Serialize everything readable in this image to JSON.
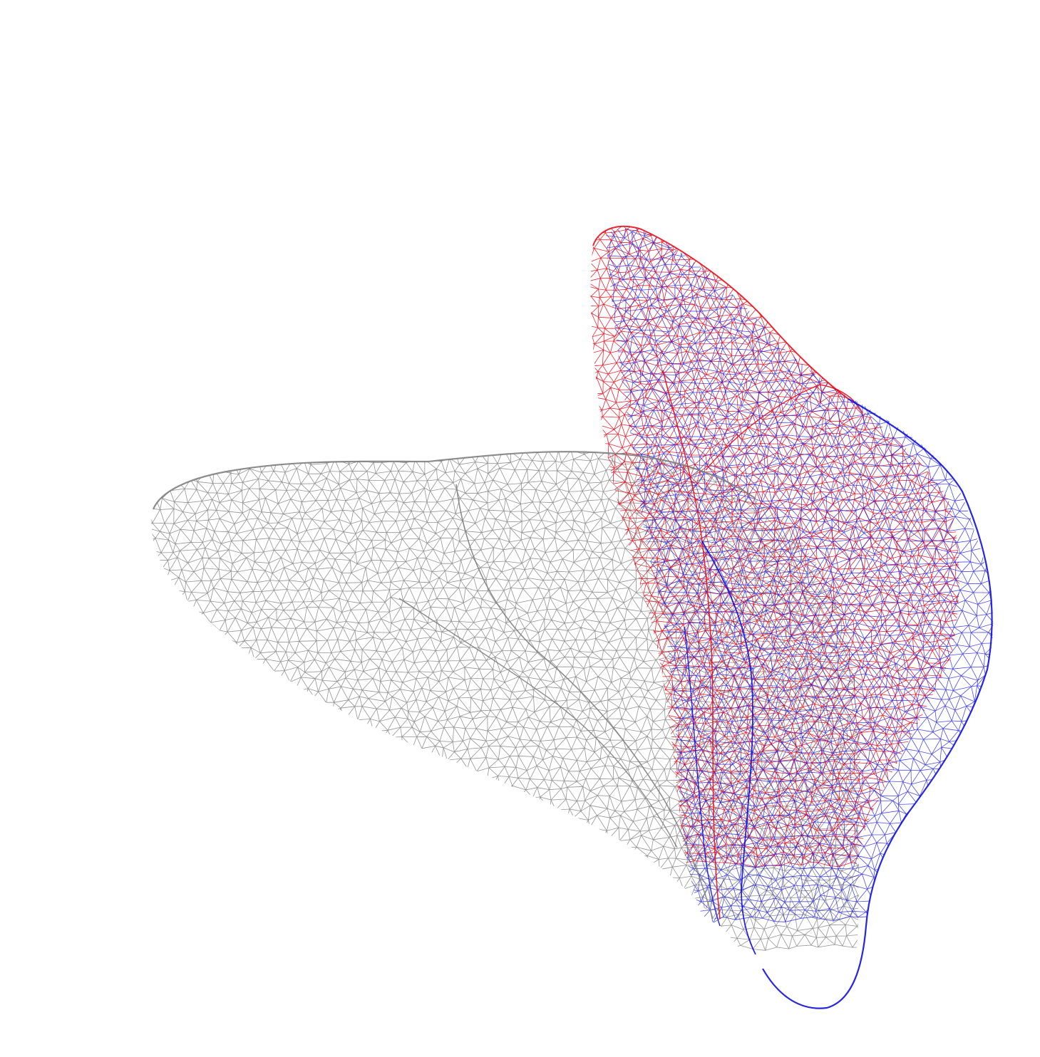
{
  "scene": {
    "background": "#ffffff",
    "meshes": [
      {
        "name": "gray-mesh",
        "color": "#808080"
      },
      {
        "name": "red-mesh",
        "color": "#e8101c"
      },
      {
        "name": "blue-mesh",
        "color": "#1010e0"
      }
    ]
  }
}
